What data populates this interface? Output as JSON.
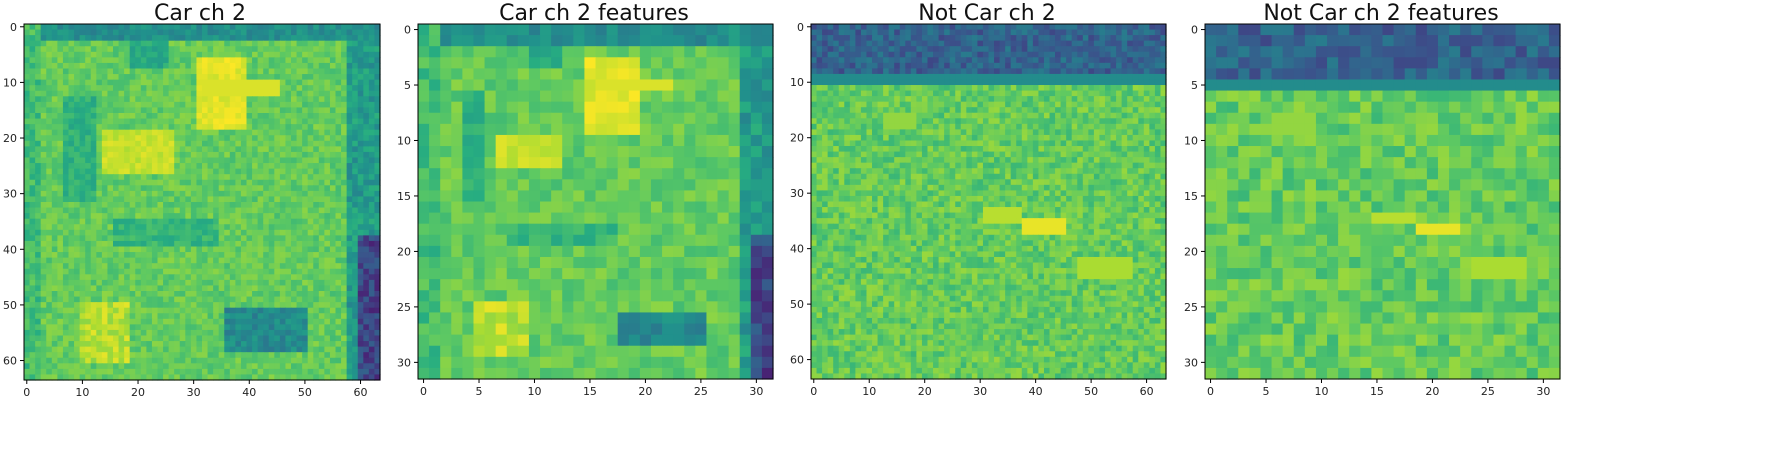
{
  "colors": {
    "colormap": "viridis",
    "viridis_low": "#440154",
    "viridis_mid": "#21918c",
    "viridis_high": "#fde725",
    "axis": "#000000",
    "background": "#ffffff"
  },
  "chart_data": [
    {
      "type": "heatmap",
      "title": "Car ch 2",
      "xlabel": "",
      "ylabel": "",
      "grid": false,
      "legend": "none",
      "x_ticks": [
        0,
        10,
        20,
        30,
        40,
        50,
        60
      ],
      "y_ticks": [
        0,
        10,
        20,
        30,
        40,
        50,
        60
      ],
      "xlim": [
        -0.5,
        63.5
      ],
      "ylim": [
        63.5,
        -0.5
      ],
      "rows": 64,
      "cols": 64,
      "scene": "car"
    },
    {
      "type": "heatmap",
      "title": "Car ch 2 features",
      "xlabel": "",
      "ylabel": "",
      "grid": false,
      "legend": "none",
      "x_ticks": [
        0,
        5,
        10,
        15,
        20,
        25,
        30
      ],
      "y_ticks": [
        0,
        5,
        10,
        15,
        20,
        25,
        30
      ],
      "xlim": [
        -0.5,
        31.5
      ],
      "ylim": [
        31.5,
        -0.5
      ],
      "rows": 32,
      "cols": 32,
      "scene": "car"
    },
    {
      "type": "heatmap",
      "title": "Not Car ch 2",
      "xlabel": "",
      "ylabel": "",
      "grid": false,
      "legend": "none",
      "x_ticks": [
        0,
        10,
        20,
        30,
        40,
        50,
        60
      ],
      "y_ticks": [
        0,
        10,
        20,
        30,
        40,
        50,
        60
      ],
      "xlim": [
        -0.5,
        63.5
      ],
      "ylim": [
        63.5,
        -0.5
      ],
      "rows": 64,
      "cols": 64,
      "scene": "notcar"
    },
    {
      "type": "heatmap",
      "title": "Not Car ch 2 features",
      "xlabel": "",
      "ylabel": "",
      "grid": false,
      "legend": "none",
      "x_ticks": [
        0,
        5,
        10,
        15,
        20,
        25,
        30
      ],
      "y_ticks": [
        0,
        5,
        10,
        15,
        20,
        25,
        30
      ],
      "xlim": [
        -0.5,
        31.5
      ],
      "ylim": [
        31.5,
        -0.5
      ],
      "rows": 32,
      "cols": 32,
      "scene": "notcar"
    }
  ]
}
